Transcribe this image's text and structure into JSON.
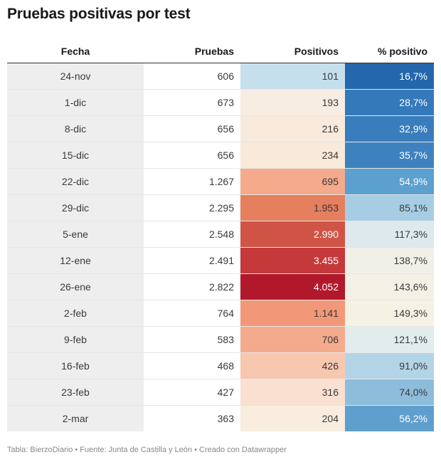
{
  "title": "Pruebas positivas por test",
  "footer": "Tabla: BierzoDiario • Fuente: Junta de Castilla y León • Creado con Datawrapper",
  "chart_data": {
    "type": "table",
    "title": "Pruebas positivas por test",
    "columns": [
      "Fecha",
      "Pruebas",
      "Positivos",
      "% positivo"
    ],
    "rows": [
      {
        "fecha": "24-nov",
        "pruebas": "606",
        "positivos": "101",
        "pct": "16,7%",
        "positivos_value": 101,
        "pct_value": 16.7,
        "positivos_color": "#c6dfed",
        "pct_color": "#2467ad"
      },
      {
        "fecha": "1-dic",
        "pruebas": "673",
        "positivos": "193",
        "pct": "28,7%",
        "positivos_value": 193,
        "pct_value": 28.7,
        "positivos_color": "#f8ede2",
        "pct_color": "#3479ba"
      },
      {
        "fecha": "8-dic",
        "pruebas": "656",
        "positivos": "216",
        "pct": "32,9%",
        "positivos_value": 216,
        "pct_value": 32.9,
        "positivos_color": "#f8ebdd",
        "pct_color": "#397dbc"
      },
      {
        "fecha": "15-dic",
        "pruebas": "656",
        "positivos": "234",
        "pct": "35,7%",
        "positivos_value": 234,
        "pct_value": 35.7,
        "positivos_color": "#f8e9da",
        "pct_color": "#3d82be"
      },
      {
        "fecha": "22-dic",
        "pruebas": "1.267",
        "positivos": "695",
        "pct": "54,9%",
        "positivos_value": 695,
        "pct_value": 54.9,
        "positivos_color": "#f5aa8c",
        "pct_color": "#5ca0cf"
      },
      {
        "fecha": "29-dic",
        "pruebas": "2.295",
        "positivos": "1.953",
        "pct": "85,1%",
        "positivos_value": 1953,
        "pct_value": 85.1,
        "positivos_color": "#e57f5e",
        "pct_color": "#a6cde4"
      },
      {
        "fecha": "5-ene",
        "pruebas": "2.548",
        "positivos": "2.990",
        "pct": "117,3%",
        "positivos_value": 2990,
        "pct_value": 117.3,
        "positivos_color": "#d05446",
        "pct_color": "#dde9ec"
      },
      {
        "fecha": "12-ene",
        "pruebas": "2.491",
        "positivos": "3.455",
        "pct": "138,7%",
        "positivos_value": 3455,
        "pct_value": 138.7,
        "positivos_color": "#c5393a",
        "pct_color": "#f1f0e8"
      },
      {
        "fecha": "26-ene",
        "pruebas": "2.822",
        "positivos": "4.052",
        "pct": "143,6%",
        "positivos_value": 4052,
        "pct_value": 143.6,
        "positivos_color": "#b2182b",
        "pct_color": "#f3f1e6"
      },
      {
        "fecha": "2-feb",
        "pruebas": "764",
        "positivos": "1.141",
        "pct": "149,3%",
        "positivos_value": 1141,
        "pct_value": 149.3,
        "positivos_color": "#f29878",
        "pct_color": "#f5f2e4"
      },
      {
        "fecha": "9-feb",
        "pruebas": "583",
        "positivos": "706",
        "pct": "121,1%",
        "positivos_value": 706,
        "pct_value": 121.1,
        "positivos_color": "#f4ab8d",
        "pct_color": "#e2ecec"
      },
      {
        "fecha": "16-feb",
        "pruebas": "468",
        "positivos": "426",
        "pct": "91,0%",
        "positivos_value": 426,
        "pct_value": 91.0,
        "positivos_color": "#f8c7af",
        "pct_color": "#b3d4e7"
      },
      {
        "fecha": "23-feb",
        "pruebas": "427",
        "positivos": "316",
        "pct": "74,0%",
        "positivos_value": 316,
        "pct_value": 74.0,
        "positivos_color": "#f9e0d1",
        "pct_color": "#8ebcdb"
      },
      {
        "fecha": "2-mar",
        "pruebas": "363",
        "positivos": "204",
        "pct": "56,2%",
        "positivos_value": 204,
        "pct_value": 56.2,
        "positivos_color": "#f9ede0",
        "pct_color": "#5f9fcd"
      }
    ]
  }
}
